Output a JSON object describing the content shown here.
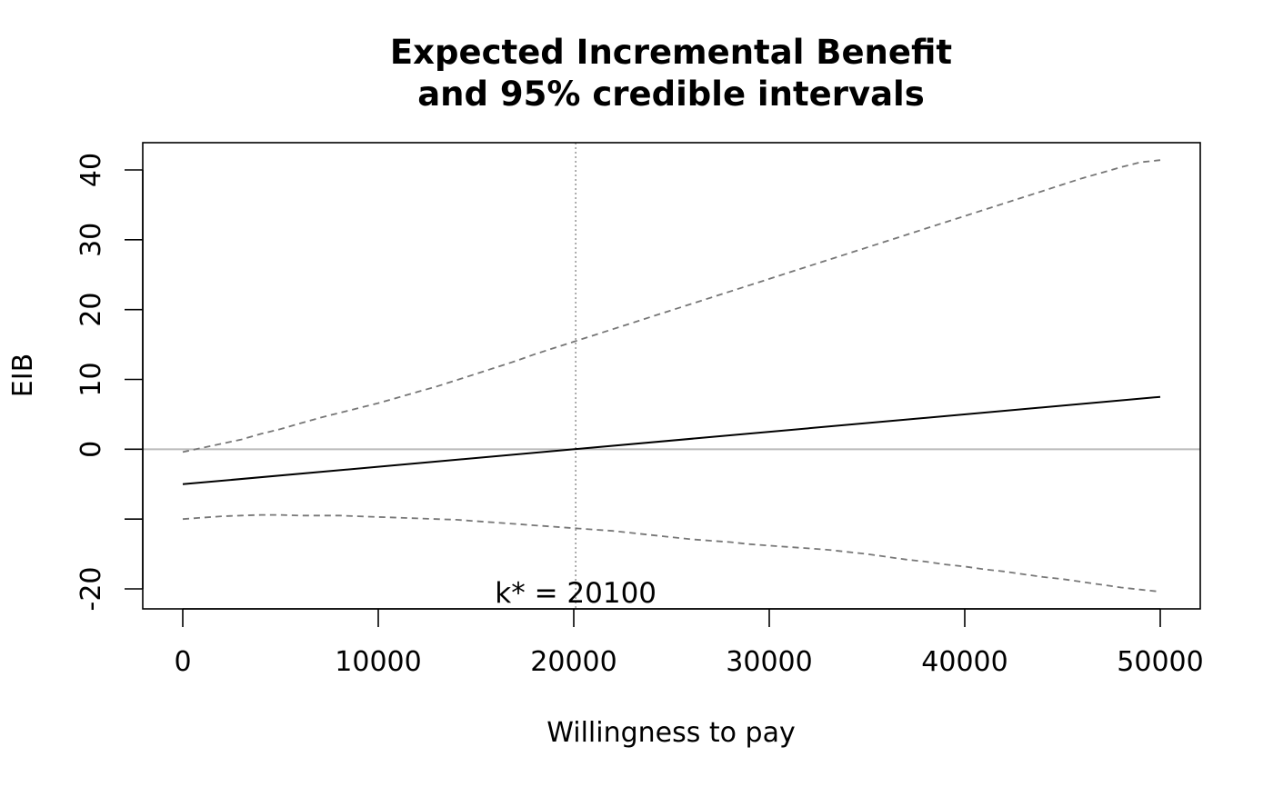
{
  "chart_data": {
    "type": "line",
    "title": [
      "Expected Incremental Benefit",
      "and 95% credible intervals"
    ],
    "xlabel": "Willingness to pay",
    "ylabel": "EIB",
    "xlim": [
      0,
      50000
    ],
    "ylim": [
      -20,
      40
    ],
    "x_ticks": [
      "0",
      "10000",
      "20000",
      "30000",
      "40000",
      "50000"
    ],
    "y_ticks": [
      "-20",
      "",
      "0",
      "10",
      "20",
      "30",
      "40"
    ],
    "y_tick_values": [
      -20,
      -10,
      0,
      10,
      20,
      30,
      40
    ],
    "x_tick_values": [
      0,
      10000,
      20000,
      30000,
      40000,
      50000
    ],
    "annotation": "k* = 20100",
    "kstar": 20100,
    "reference_line_y": 0,
    "grid": false,
    "series": [
      {
        "style": "solid",
        "color": "#000000",
        "x": [
          0,
          50000
        ],
        "values": [
          -5.0,
          7.5
        ]
      },
      {
        "style": "dashed",
        "color": "#777777",
        "x": [
          0,
          1000,
          2000,
          3000,
          4000,
          5000,
          6000,
          7000,
          8000,
          9000,
          10000,
          11000,
          12000,
          13000,
          14000,
          15000,
          16000,
          17000,
          18000,
          19000,
          20000,
          21000,
          22000,
          23000,
          24000,
          25000,
          26000,
          27000,
          28000,
          29000,
          30000,
          31000,
          32000,
          33000,
          34000,
          35000,
          36000,
          37000,
          38000,
          39000,
          40000,
          41000,
          42000,
          43000,
          44000,
          45000,
          46000,
          47000,
          48000,
          49000,
          50000
        ],
        "values": [
          -0.4,
          0.2,
          0.8,
          1.4,
          2.2,
          2.9,
          3.7,
          4.5,
          5.2,
          5.9,
          6.6,
          7.4,
          8.2,
          9.0,
          9.9,
          10.8,
          11.7,
          12.6,
          13.6,
          14.5,
          15.4,
          16.3,
          17.2,
          18.1,
          19.0,
          19.9,
          20.8,
          21.7,
          22.6,
          23.5,
          24.4,
          25.3,
          26.2,
          27.1,
          28.0,
          28.9,
          29.8,
          30.7,
          31.6,
          32.5,
          33.4,
          34.3,
          35.2,
          36.1,
          37.0,
          37.9,
          38.8,
          39.6,
          40.4,
          41.1,
          41.4
        ]
      },
      {
        "style": "dashed",
        "color": "#777777",
        "x": [
          0,
          1000,
          2000,
          3000,
          4000,
          5000,
          6000,
          7000,
          8000,
          9000,
          10000,
          11000,
          12000,
          13000,
          14000,
          15000,
          16000,
          17000,
          18000,
          19000,
          20000,
          21000,
          22000,
          23000,
          24000,
          25000,
          26000,
          27000,
          28000,
          29000,
          30000,
          31000,
          32000,
          33000,
          34000,
          35000,
          36000,
          37000,
          38000,
          39000,
          40000,
          41000,
          42000,
          43000,
          44000,
          45000,
          46000,
          47000,
          48000,
          49000,
          50000
        ],
        "values": [
          -10.0,
          -9.8,
          -9.6,
          -9.5,
          -9.4,
          -9.4,
          -9.5,
          -9.5,
          -9.5,
          -9.6,
          -9.7,
          -9.8,
          -9.9,
          -10.0,
          -10.1,
          -10.3,
          -10.5,
          -10.7,
          -10.9,
          -11.1,
          -11.3,
          -11.5,
          -11.7,
          -12.0,
          -12.3,
          -12.6,
          -12.9,
          -13.1,
          -13.3,
          -13.6,
          -13.8,
          -14.0,
          -14.2,
          -14.4,
          -14.7,
          -15.0,
          -15.4,
          -15.8,
          -16.1,
          -16.5,
          -16.8,
          -17.2,
          -17.5,
          -17.9,
          -18.3,
          -18.6,
          -19.0,
          -19.4,
          -19.8,
          -20.1,
          -20.4
        ]
      }
    ],
    "colors": {
      "reference_line": "#bbbbbb",
      "vertical_line": "#999999",
      "frame": "#000000"
    }
  }
}
